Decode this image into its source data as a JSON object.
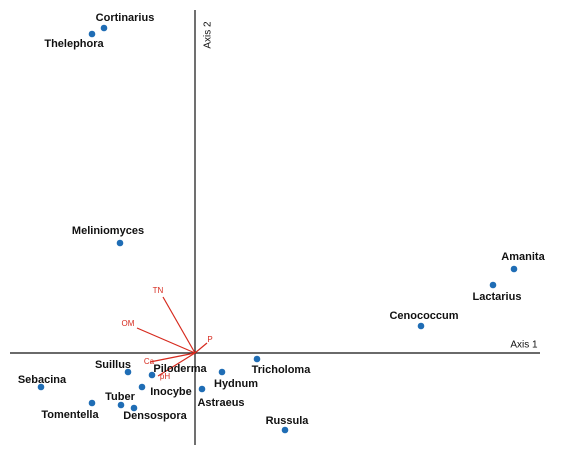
{
  "chart_data": {
    "type": "biplot",
    "x_label": "Axis 1",
    "y_label": "Axis 2",
    "xlim": [
      -1.85,
      3.45
    ],
    "ylim": [
      -0.92,
      3.25
    ],
    "point_color": "#1f6db5",
    "vector_color": "#d62a1e",
    "points": {
      "names": [
        "Cortinarius",
        "Thelephora",
        "Meliniomyces",
        "Amanita",
        "Lactarius",
        "Cenococcum",
        "Tricholoma",
        "Hydnum",
        "Astraeus",
        "Russula",
        "Suillus",
        "Piloderma",
        "Inocybe",
        "Tuber",
        "Densospora",
        "Tomentella",
        "Sebacina"
      ],
      "x": [
        -0.91,
        -1.03,
        -0.75,
        3.19,
        2.98,
        2.26,
        0.62,
        0.27,
        0.07,
        0.9,
        -0.67,
        -0.43,
        -0.53,
        -0.74,
        -0.61,
        -1.03,
        -1.54
      ],
      "y": [
        3.25,
        3.19,
        1.1,
        0.84,
        0.68,
        0.27,
        -0.06,
        -0.19,
        -0.36,
        -0.77,
        -0.19,
        -0.22,
        -0.34,
        -0.52,
        -0.55,
        -0.5,
        -0.34
      ]
    },
    "vectors": {
      "names": [
        "TN",
        "OM",
        "P",
        "Ca",
        "pH"
      ],
      "x": [
        -0.32,
        -0.58,
        0.12,
        -0.45,
        -0.37
      ],
      "y": [
        0.56,
        0.25,
        0.1,
        -0.09,
        -0.23
      ]
    }
  }
}
